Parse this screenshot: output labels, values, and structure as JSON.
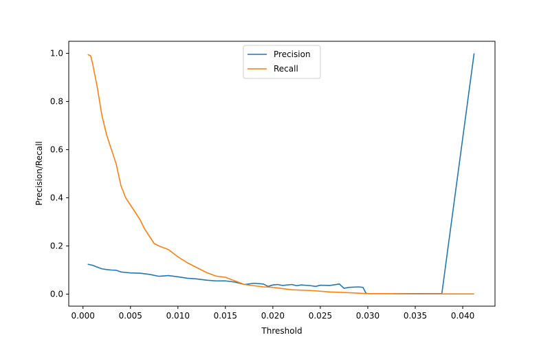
{
  "chart_data": {
    "type": "line",
    "title": "",
    "xlabel": "Threshold",
    "ylabel": "Precision/Recall",
    "xlim": [
      -0.0015,
      0.0434
    ],
    "ylim": [
      -0.05,
      1.05
    ],
    "x_ticks": [
      0.0,
      0.005,
      0.01,
      0.015,
      0.02,
      0.025,
      0.03,
      0.035,
      0.04
    ],
    "x_tick_labels": [
      "0.000",
      "0.005",
      "0.010",
      "0.015",
      "0.020",
      "0.025",
      "0.030",
      "0.035",
      "0.040"
    ],
    "y_ticks": [
      0.0,
      0.2,
      0.4,
      0.6,
      0.8,
      1.0
    ],
    "y_tick_labels": [
      "0.0",
      "0.2",
      "0.4",
      "0.6",
      "0.8",
      "1.0"
    ],
    "grid": false,
    "legend_position": "upper-center",
    "series": [
      {
        "name": "Precision",
        "color": "#1f77b4",
        "x": [
          0.0005,
          0.001,
          0.0015,
          0.002,
          0.0025,
          0.003,
          0.0035,
          0.004,
          0.0045,
          0.005,
          0.006,
          0.007,
          0.008,
          0.009,
          0.01,
          0.011,
          0.012,
          0.013,
          0.014,
          0.015,
          0.016,
          0.0165,
          0.017,
          0.018,
          0.019,
          0.0195,
          0.02,
          0.0205,
          0.021,
          0.022,
          0.0225,
          0.023,
          0.024,
          0.0245,
          0.025,
          0.026,
          0.027,
          0.0275,
          0.028,
          0.029,
          0.0295,
          0.0298,
          0.03,
          0.032,
          0.035,
          0.0378,
          0.0412
        ],
        "y": [
          0.124,
          0.12,
          0.112,
          0.105,
          0.102,
          0.1,
          0.099,
          0.092,
          0.09,
          0.088,
          0.087,
          0.082,
          0.074,
          0.077,
          0.072,
          0.066,
          0.063,
          0.058,
          0.055,
          0.055,
          0.05,
          0.045,
          0.04,
          0.045,
          0.042,
          0.032,
          0.038,
          0.04,
          0.036,
          0.04,
          0.035,
          0.038,
          0.035,
          0.032,
          0.037,
          0.036,
          0.042,
          0.024,
          0.028,
          0.03,
          0.028,
          0.004,
          0.002,
          0.002,
          0.002,
          0.002,
          1.0
        ]
      },
      {
        "name": "Recall",
        "color": "#ff7f0e",
        "x": [
          0.0005,
          0.0008,
          0.001,
          0.0013,
          0.0015,
          0.002,
          0.0025,
          0.003,
          0.0035,
          0.004,
          0.0045,
          0.005,
          0.0055,
          0.006,
          0.0065,
          0.007,
          0.0075,
          0.008,
          0.009,
          0.01,
          0.011,
          0.012,
          0.013,
          0.014,
          0.015,
          0.016,
          0.017,
          0.018,
          0.019,
          0.02,
          0.022,
          0.024,
          0.026,
          0.028,
          0.03,
          0.032,
          0.035,
          0.038,
          0.0412
        ],
        "y": [
          0.995,
          0.99,
          0.96,
          0.9,
          0.86,
          0.74,
          0.66,
          0.6,
          0.54,
          0.45,
          0.4,
          0.37,
          0.34,
          0.31,
          0.27,
          0.24,
          0.21,
          0.2,
          0.185,
          0.155,
          0.13,
          0.11,
          0.09,
          0.075,
          0.07,
          0.055,
          0.04,
          0.035,
          0.03,
          0.028,
          0.018,
          0.015,
          0.009,
          0.006,
          0.002,
          0.002,
          0.001,
          0.001,
          0.001
        ]
      }
    ]
  }
}
